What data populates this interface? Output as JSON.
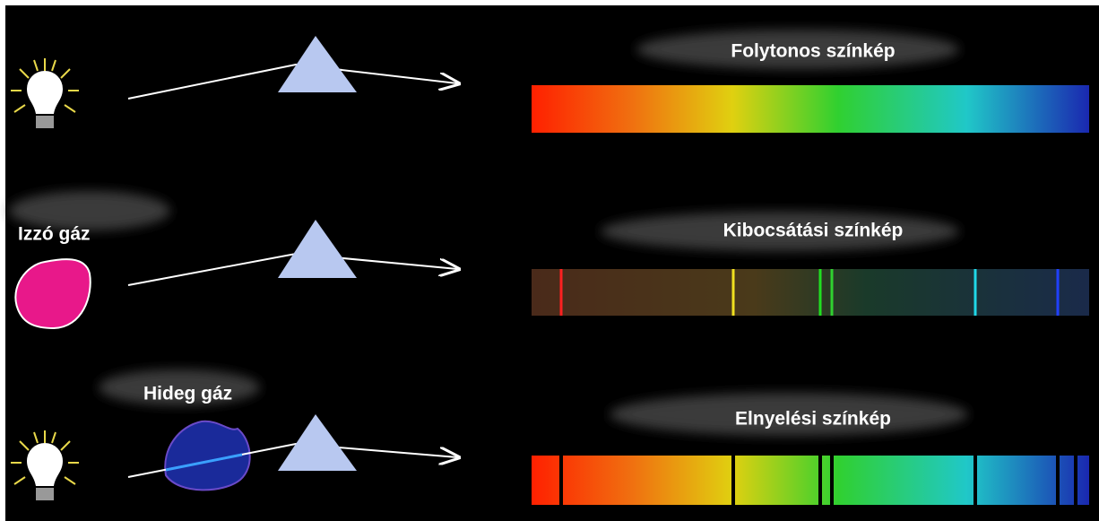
{
  "rows": [
    {
      "title": "Folytonos színkép"
    },
    {
      "label": "Izzó gáz",
      "title": "Kibocsátási színkép"
    },
    {
      "label": "Hideg gáz",
      "title": "Elnyelési színkép"
    }
  ]
}
